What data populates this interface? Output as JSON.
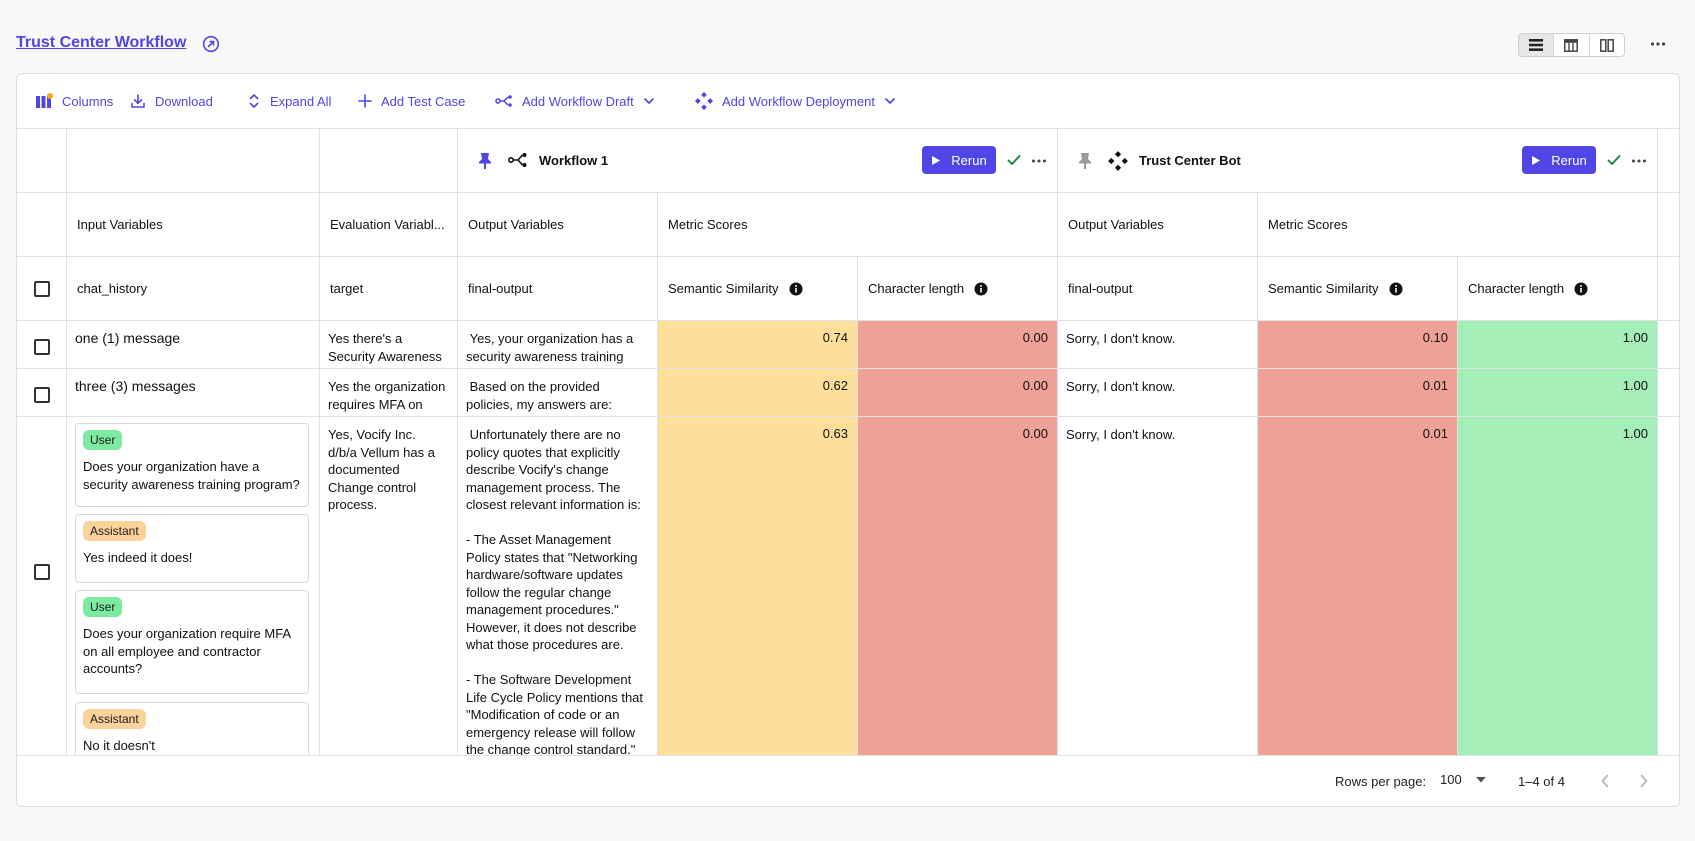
{
  "page": {
    "title": "Trust Center Workflow"
  },
  "toolbar": {
    "columns": "Columns",
    "download": "Download",
    "expand_all": "Expand All",
    "add_test_case": "Add Test Case",
    "add_workflow_draft": "Add Workflow Draft",
    "add_workflow_deployment": "Add Workflow Deployment"
  },
  "groups": [
    {
      "name": "Workflow 1",
      "rerun": "Rerun"
    },
    {
      "name": "Trust Center Bot",
      "rerun": "Rerun"
    }
  ],
  "sections": {
    "input": "Input Variables",
    "evaluation": "Evaluation Variabl...",
    "output_1": "Output Variables",
    "metrics_1": "Metric Scores",
    "output_2": "Output Variables",
    "metrics_2": "Metric Scores"
  },
  "columns": {
    "chat_history": "chat_history",
    "target": "target",
    "final_output_1": "final-output",
    "semantic_1": "Semantic Similarity",
    "charlen_1": "Character length",
    "final_output_2": "final-output",
    "semantic_2": "Semantic Similarity",
    "charlen_2": "Character length"
  },
  "rows": [
    {
      "chat_history": "one (1) message",
      "target": "Yes there's a Security Awareness",
      "output_1": " Yes, your organization has a security awareness training",
      "semantic_1": "0.74",
      "charlen_1": "0.00",
      "output_2": "Sorry, I don't know.",
      "semantic_2": "0.10",
      "charlen_2": "1.00"
    },
    {
      "chat_history": "three (3) messages",
      "target": "Yes the organization requires MFA on",
      "output_1": " Based on the provided policies, my answers are:",
      "semantic_1": "0.62",
      "charlen_1": "0.00",
      "output_2": "Sorry, I don't know.",
      "semantic_2": "0.01",
      "charlen_2": "1.00"
    },
    {
      "messages": [
        {
          "role": "User",
          "text": "Does your organization have a security awareness training program?"
        },
        {
          "role": "Assistant",
          "text": "Yes indeed it does!"
        },
        {
          "role": "User",
          "text": "Does your organization require MFA on all employee and contractor accounts?"
        },
        {
          "role": "Assistant",
          "text": "No it doesn't"
        }
      ],
      "target": "Yes, Vocify Inc. d/b/a Vellum has a documented Change control process.",
      "output_1": " Unfortunately there are no policy quotes that explicitly describe Vocify's change management process. The closest relevant information is:\n\n- The Asset Management Policy states that \"Networking hardware/software updates follow the regular change management procedures.\" However, it does not describe what those procedures are.\n\n- The Software Development Life Cycle Policy mentions that \"Modification of code or an emergency release will follow the change control standard.\"",
      "semantic_1": "0.63",
      "charlen_1": "0.00",
      "output_2": "Sorry, I don't know.",
      "semantic_2": "0.01",
      "charlen_2": "1.00"
    }
  ],
  "footer": {
    "rows_per_page_label": "Rows per page:",
    "rows_per_page_value": "100",
    "range": "1–4 of 4"
  },
  "colors": {
    "accent": "#4f46e5",
    "score_yellow": "#fddf9a",
    "score_red": "#f0a197",
    "score_green": "#a5eeb7",
    "badge_user": "#7ceba0",
    "badge_assistant": "#fcd29b",
    "check_green": "#15803d"
  }
}
